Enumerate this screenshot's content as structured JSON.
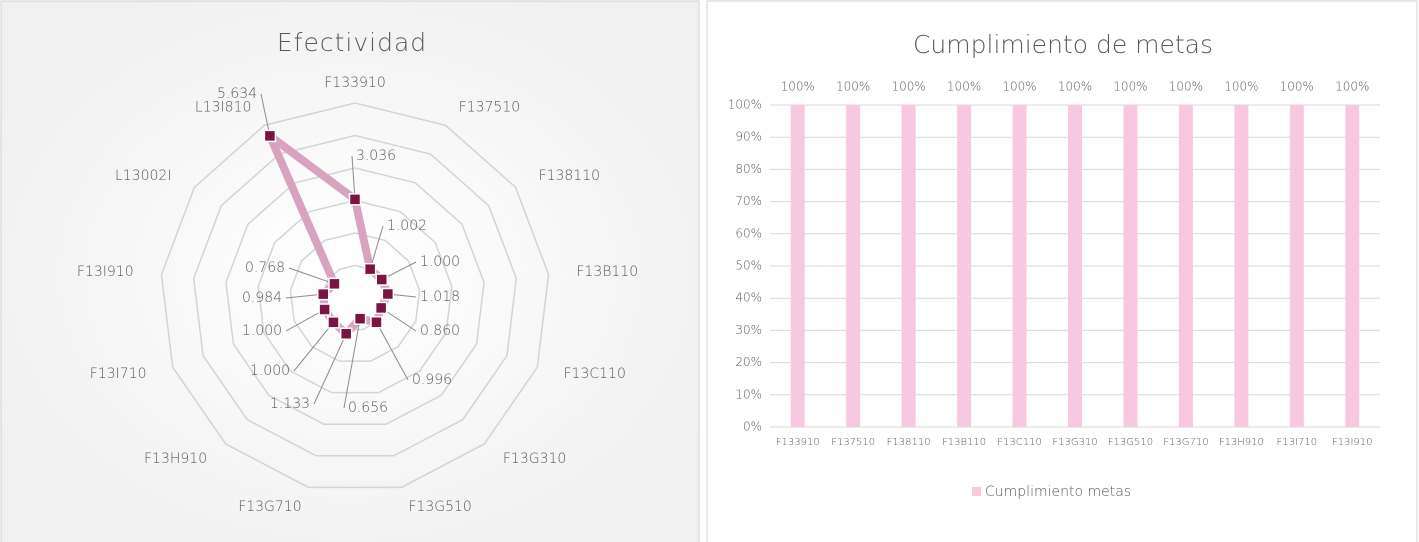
{
  "chart_data": [
    {
      "type": "radar",
      "title": "Efectividad",
      "categories": [
        "F133910",
        "F137510",
        "F138110",
        "F13B110",
        "F13C110",
        "F13G310",
        "F13G510",
        "F13G710",
        "F13H910",
        "F13I710",
        "F13I910",
        "L13002I",
        "L13I810"
      ],
      "values": [
        3.036,
        1.002,
        1.0,
        1.018,
        0.86,
        0.996,
        0.656,
        1.133,
        1.0,
        1.0,
        0.984,
        0.768,
        5.634
      ],
      "value_labels": [
        "3.036",
        "1.002",
        "1.000",
        "1.018",
        "0.860",
        "0.996",
        "0.656",
        "1.133",
        "1.000",
        "1.000",
        "0.984",
        "0.768",
        "5.634"
      ],
      "color": "#d9a3c0",
      "marker_color": "#7b1343",
      "ylim": [
        0,
        6
      ],
      "yticks": [
        0,
        1,
        2,
        3,
        4,
        5,
        6
      ],
      "grid": true
    },
    {
      "type": "bar",
      "title": "Cumplimiento de metas",
      "categories": [
        "F133910",
        "F137510",
        "F138110",
        "F13B110",
        "F13C110",
        "F13G310",
        "F13G510",
        "F13G710",
        "F13H910",
        "F13I710",
        "F13I910"
      ],
      "series": [
        {
          "name": "Cumplimiento metas",
          "color": "#f8c8e1",
          "values": [
            100,
            100,
            100,
            100,
            100,
            100,
            100,
            100,
            100,
            100,
            100
          ],
          "value_labels": [
            "100%",
            "100%",
            "100%",
            "100%",
            "100%",
            "100%",
            "100%",
            "100%",
            "100%",
            "100%",
            "100%"
          ]
        }
      ],
      "ylim": [
        0,
        100
      ],
      "yticks": [
        {
          "value": 0,
          "label": "0%"
        },
        {
          "value": 10,
          "label": "10%"
        },
        {
          "value": 20,
          "label": "20%"
        },
        {
          "value": 30,
          "label": "30%"
        },
        {
          "value": 40,
          "label": "40%"
        },
        {
          "value": 50,
          "label": "50%"
        },
        {
          "value": 60,
          "label": "60%"
        },
        {
          "value": 70,
          "label": "70%"
        },
        {
          "value": 80,
          "label": "80%"
        },
        {
          "value": 90,
          "label": "90%"
        },
        {
          "value": 100,
          "label": "100%"
        }
      ],
      "grid": true,
      "legend": "bottom"
    }
  ]
}
